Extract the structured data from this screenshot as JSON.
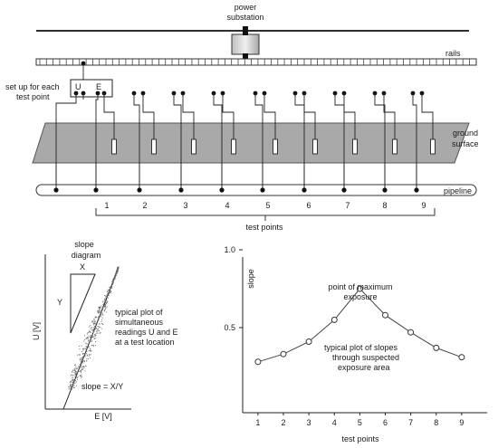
{
  "top_diagram": {
    "substation_label_line1": "power",
    "substation_label_line2": "substation",
    "rails_label": "rails",
    "setup_label_line1": "set up for each",
    "setup_label_line2": "test point",
    "meter_u": "U",
    "meter_e": "E",
    "ground_label_line1": "ground",
    "ground_label_line2": "surface",
    "pipeline_label": "pipeline",
    "test_point_numbers": [
      "1",
      "2",
      "3",
      "4",
      "5",
      "6",
      "7",
      "8",
      "9"
    ],
    "test_points_caption": "test points"
  },
  "slope_diagram": {
    "title_line1": "slope",
    "title_line2": "diagram",
    "x_mark": "X",
    "y_mark": "Y",
    "ylabel": "U [V]",
    "xlabel": "E [V]",
    "note_line1": "typical plot of",
    "note_line2": "simultaneous",
    "note_line3": "readings U and E",
    "note_line4": "at a test location",
    "slope_formula": "slope = X/Y"
  },
  "chart_data": {
    "type": "line",
    "ylabel": "slope",
    "xlabel": "test points",
    "x": [
      1,
      2,
      3,
      4,
      5,
      6,
      7,
      8,
      9
    ],
    "series": [
      {
        "values": [
          0.28,
          0.33,
          0.41,
          0.55,
          0.75,
          0.58,
          0.47,
          0.37,
          0.31
        ]
      }
    ],
    "xlim": [
      0.4,
      10
    ],
    "ylim": [
      0,
      1.0
    ],
    "y_ticks": [
      "1.0",
      "0.5"
    ],
    "x_ticks": [
      "1",
      "2",
      "3",
      "4",
      "5",
      "6",
      "7",
      "8",
      "9"
    ],
    "annotation_peak_line1": "point of maximum",
    "annotation_peak_line2": "exposure",
    "annotation_curve_line1": "typical plot of slopes",
    "annotation_curve_line2": "through suspected",
    "annotation_curve_line3": "exposure area",
    "grid": false,
    "colors": {
      "line": "#444444",
      "marker_fill": "#ffffff"
    }
  }
}
